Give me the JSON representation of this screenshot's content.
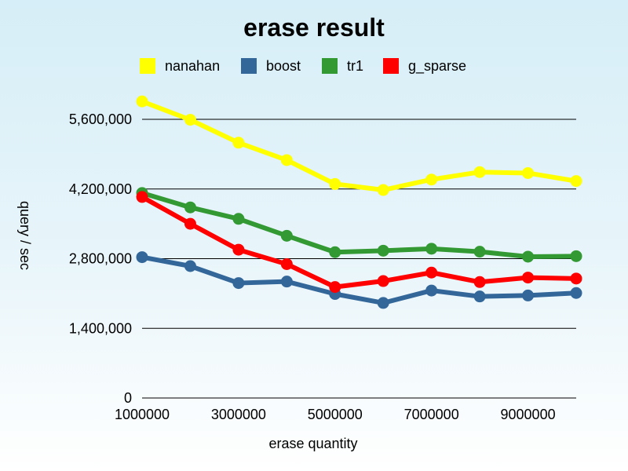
{
  "chart_data": {
    "type": "line",
    "title": "erase result",
    "xlabel": "erase quantity",
    "ylabel": "query / sec",
    "x": [
      1000000,
      2000000,
      3000000,
      4000000,
      5000000,
      6000000,
      7000000,
      8000000,
      9000000,
      10000000
    ],
    "xlim": [
      1000000,
      10000000
    ],
    "x_ticks": [
      1000000,
      3000000,
      5000000,
      7000000,
      9000000
    ],
    "x_tick_labels": [
      "1000000",
      "3000000",
      "5000000",
      "7000000",
      "9000000"
    ],
    "ylim": [
      0,
      5600000
    ],
    "y_ticks": [
      0,
      1400000,
      2800000,
      4200000,
      5600000
    ],
    "y_tick_labels": [
      "0",
      "1,400,000",
      "2,800,000",
      "4,200,000",
      "5,600,000"
    ],
    "grid": "horizontal",
    "legend_position": "top",
    "series": [
      {
        "name": "nanahan",
        "color": "#ffff00",
        "values": [
          5960000,
          5590000,
          5130000,
          4780000,
          4300000,
          4180000,
          4390000,
          4540000,
          4520000,
          4360000
        ]
      },
      {
        "name": "boost",
        "color": "#336699",
        "values": [
          2830000,
          2650000,
          2310000,
          2340000,
          2090000,
          1910000,
          2160000,
          2040000,
          2060000,
          2110000
        ]
      },
      {
        "name": "tr1",
        "color": "#339933",
        "values": [
          4120000,
          3830000,
          3600000,
          3260000,
          2930000,
          2960000,
          3000000,
          2940000,
          2840000,
          2850000
        ]
      },
      {
        "name": "g_sparse",
        "color": "#ff0000",
        "values": [
          4040000,
          3500000,
          2980000,
          2690000,
          2230000,
          2350000,
          2520000,
          2330000,
          2420000,
          2400000
        ]
      }
    ]
  }
}
